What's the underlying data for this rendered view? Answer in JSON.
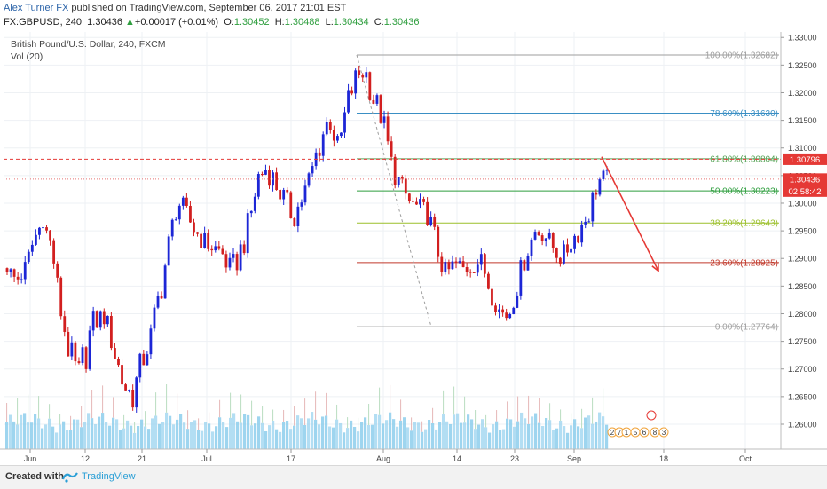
{
  "header": {
    "author": "Alex Turner FX",
    "published": " published on TradingView.com, September 06, 2017 21:01 EST",
    "symbol": "FX:GBPUSD, 240",
    "last": "1.30436",
    "change": "+0.00017 (+0.01%)",
    "o_label": "O:",
    "o_val": "1.30452",
    "h_label": "H:",
    "h_val": "1.30488",
    "l_label": "L:",
    "l_val": "1.30434",
    "c_label": "C:",
    "c_val": "1.30436"
  },
  "legend": {
    "title": "British Pound/U.S. Dollar, 240, FXCM",
    "indicator": "Vol (20)"
  },
  "footer": {
    "created": "Created with",
    "brand": "TradingView"
  },
  "colors": {
    "up": "#1c26d6",
    "down": "#d21f1f",
    "fib100": "#9e9e9e",
    "fib786": "#3a8fc4",
    "fib618": "#5aa55a",
    "fib50": "#2e9e3e",
    "fib382": "#9bbf2a",
    "fib236": "#c0392b",
    "fib0": "#9e9e9e",
    "arrow": "#e53935",
    "volume": "#7ec7ea"
  },
  "chart_data": {
    "type": "candlestick",
    "symbol": "GBPUSD",
    "timeframe": "240",
    "ylim": [
      1.2555,
      1.331
    ],
    "y_ticks": [
      "1.33000",
      "1.32500",
      "1.32000",
      "1.31500",
      "1.31000",
      "1.30500",
      "1.30000",
      "1.29500",
      "1.29000",
      "1.28500",
      "1.28000",
      "1.27500",
      "1.27000",
      "1.26500",
      "1.26000"
    ],
    "x_ticks": [
      "Jun",
      "12",
      "21",
      "Jul",
      "17",
      "Aug",
      "14",
      "23",
      "Sep",
      "18",
      "Oct"
    ],
    "price_labels": [
      {
        "text": "1.30796",
        "value": 1.30796,
        "color": "#e53935"
      },
      {
        "text": "1.30436",
        "value": 1.30436,
        "color": "#e53935"
      },
      {
        "text": "02:58:42",
        "value": 1.3025,
        "color": "#e53935"
      }
    ],
    "fib_levels": [
      {
        "label": "100.00%(1.32682)",
        "value": 1.32682,
        "color": "#9e9e9e"
      },
      {
        "label": "78.60%(1.31630)",
        "value": 1.3163,
        "color": "#3a8fc4"
      },
      {
        "label": "61.80%(1.30804)",
        "value": 1.30804,
        "color": "#5aa55a"
      },
      {
        "label": "50.00%(1.30223)",
        "value": 1.30223,
        "color": "#2e9e3e"
      },
      {
        "label": "38.20%(1.29643)",
        "value": 1.29643,
        "color": "#9bbf2a"
      },
      {
        "label": "23.60%(1.28925)",
        "value": 1.28925,
        "color": "#c0392b"
      },
      {
        "label": "0.00%(1.27764)",
        "value": 1.27764,
        "color": "#9e9e9e"
      }
    ],
    "path_points": [
      [
        1.2875,
        1.289
      ],
      [
        1.284,
        1.288
      ],
      [
        1.286,
        1.29
      ],
      [
        1.292,
        1.295
      ],
      [
        1.296,
        1.2975
      ],
      [
        1.29,
        1.294
      ],
      [
        1.278,
        1.283
      ],
      [
        1.269,
        1.276
      ],
      [
        1.265,
        1.272
      ],
      [
        1.27,
        1.28
      ],
      [
        1.276,
        1.282
      ],
      [
        1.278,
        1.281
      ],
      [
        1.27,
        1.276
      ],
      [
        1.264,
        1.27
      ],
      [
        1.262,
        1.268
      ],
      [
        1.268,
        1.274
      ],
      [
        1.273,
        1.278
      ],
      [
        1.28,
        1.287
      ],
      [
        1.288,
        1.295
      ],
      [
        1.298,
        1.303
      ],
      [
        1.296,
        1.3
      ],
      [
        1.293,
        1.297
      ],
      [
        1.291,
        1.295
      ],
      [
        1.29,
        1.294
      ],
      [
        1.289,
        1.293
      ],
      [
        1.285,
        1.29
      ],
      [
        1.288,
        1.294
      ],
      [
        1.293,
        1.299
      ],
      [
        1.301,
        1.308
      ],
      [
        1.304,
        1.309
      ],
      [
        1.301,
        1.306
      ],
      [
        1.298,
        1.303
      ],
      [
        1.295,
        1.3
      ],
      [
        1.299,
        1.303
      ],
      [
        1.303,
        1.308
      ],
      [
        1.308,
        1.315
      ],
      [
        1.313,
        1.318
      ],
      [
        1.307,
        1.312
      ],
      [
        1.315,
        1.321
      ],
      [
        1.321,
        1.325
      ],
      [
        1.322,
        1.326
      ],
      [
        1.315,
        1.322
      ],
      [
        1.313,
        1.317
      ],
      [
        1.304,
        1.309
      ],
      [
        1.301,
        1.305
      ],
      [
        1.298,
        1.302
      ],
      [
        1.297,
        1.301
      ],
      [
        1.296,
        1.3
      ],
      [
        1.289,
        1.295
      ],
      [
        1.285,
        1.289
      ],
      [
        1.287,
        1.291
      ],
      [
        1.286,
        1.29
      ],
      [
        1.287,
        1.291
      ],
      [
        1.288,
        1.291
      ],
      [
        1.282,
        1.286
      ],
      [
        1.279,
        1.282
      ],
      [
        1.278,
        1.281
      ],
      [
        1.283,
        1.288
      ],
      [
        1.289,
        1.293
      ],
      [
        1.293,
        1.297
      ],
      [
        1.293,
        1.296
      ],
      [
        1.29,
        1.294
      ],
      [
        1.288,
        1.292
      ],
      [
        1.291,
        1.295
      ],
      [
        1.293,
        1.298
      ],
      [
        1.296,
        1.301
      ],
      [
        1.302,
        1.306
      ],
      [
        1.304,
        1.306
      ]
    ],
    "volume_max_note": "Vol (20)",
    "annotation": {
      "type": "arrow",
      "from_value": 1.3084,
      "to_value": 1.2887
    }
  }
}
